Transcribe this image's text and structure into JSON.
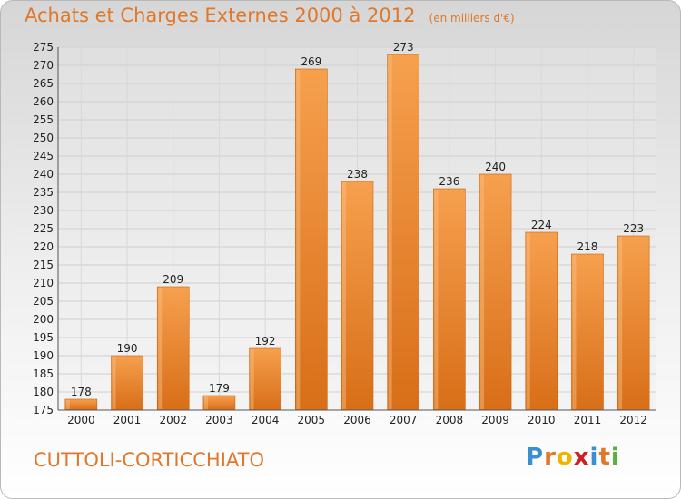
{
  "header": {
    "title": "Achats et Charges Externes 2000 à 2012",
    "unit": "(en milliers d'€)"
  },
  "footer": {
    "commune": "CUTTOLI-CORTICCHIATO",
    "logo_text": "Proxiti",
    "logo_colors": [
      "#3a8fd0",
      "#e0782a",
      "#f0b400",
      "#cc2222",
      "#3a8fd0",
      "#e0782a",
      "#59b03a"
    ]
  },
  "chart_data": {
    "type": "bar",
    "categories": [
      "2000",
      "2001",
      "2002",
      "2003",
      "2004",
      "2005",
      "2006",
      "2007",
      "2008",
      "2009",
      "2010",
      "2011",
      "2012"
    ],
    "values": [
      178,
      190,
      209,
      179,
      192,
      269,
      238,
      273,
      236,
      240,
      224,
      218,
      223
    ],
    "ylim": [
      175,
      275
    ],
    "ytick_step": 5,
    "grid": true,
    "bar_color": "#f08a2e",
    "title": "Achats et Charges Externes 2000 à 2012",
    "subtitle": "(en milliers d'€)",
    "xlabel": "",
    "ylabel": ""
  }
}
